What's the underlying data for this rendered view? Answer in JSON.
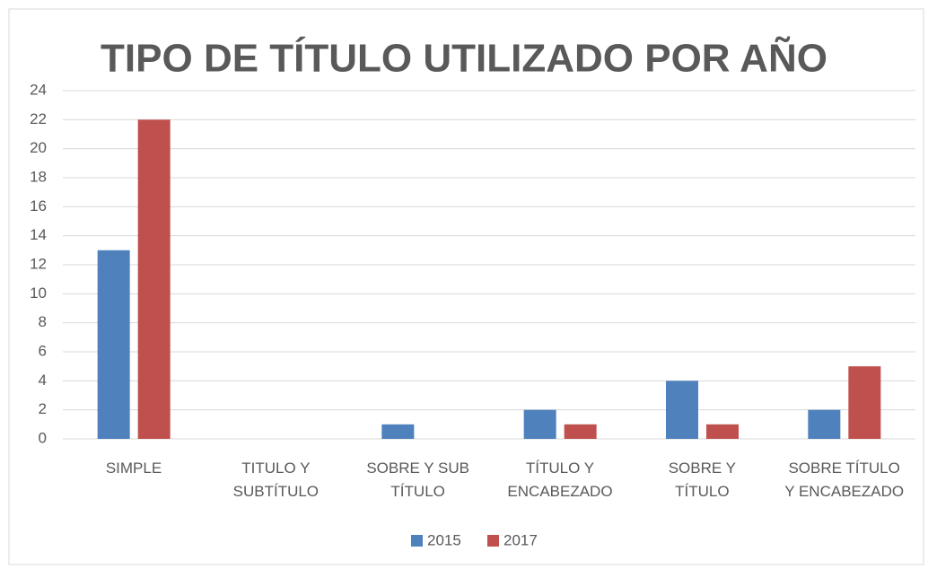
{
  "chart_data": {
    "type": "bar",
    "title": "TIPO DE TÍTULO UTILIZADO POR AÑO",
    "categories": [
      "SIMPLE",
      "TITULO Y\nSUBTÍTULO",
      "SOBRE Y SUB\nTÍTULO",
      "TÍTULO Y\nENCABEZADO",
      "SOBRE Y\nTÍTULO",
      "SOBRE TÍTULO\nY ENCABEZADO"
    ],
    "series": [
      {
        "name": "2015",
        "color": "#4f81bd",
        "values": [
          13,
          0,
          1,
          2,
          4,
          2
        ]
      },
      {
        "name": "2017",
        "color": "#c0504d",
        "values": [
          22,
          0,
          0,
          1,
          1,
          5
        ]
      }
    ],
    "ylim": [
      0,
      24
    ],
    "yticks": [
      0,
      2,
      4,
      6,
      8,
      10,
      12,
      14,
      16,
      18,
      20,
      22,
      24
    ],
    "grid": true,
    "legend": "bottom"
  }
}
